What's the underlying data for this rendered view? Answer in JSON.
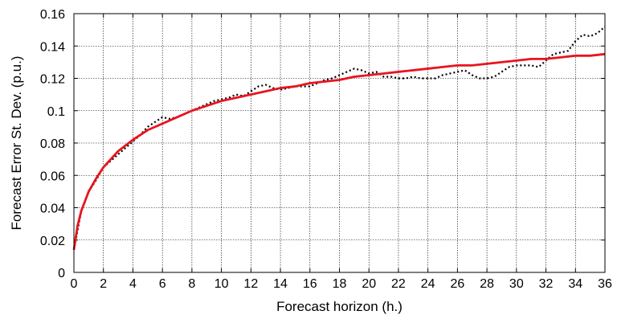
{
  "chart_data": {
    "type": "line",
    "title": "",
    "xlabel": "Forecast horizon (h.)",
    "ylabel": "Forecast Error St. Dev. (p.u.)",
    "xlim": [
      0,
      36
    ],
    "ylim": [
      0,
      0.16
    ],
    "xticks": [
      0,
      2,
      4,
      6,
      8,
      10,
      12,
      14,
      16,
      18,
      20,
      22,
      24,
      26,
      28,
      30,
      32,
      34,
      36
    ],
    "yticks": [
      0,
      0.02,
      0.04,
      0.06,
      0.08,
      0.1,
      0.12,
      0.14,
      0.16
    ],
    "xtick_labels": [
      "0",
      "2",
      "4",
      "6",
      "8",
      "10",
      "12",
      "14",
      "16",
      "18",
      "20",
      "22",
      "24",
      "26",
      "28",
      "30",
      "32",
      "34",
      "36"
    ],
    "ytick_labels": [
      "0",
      "0.02",
      "0.04",
      "0.06",
      "0.08",
      "0.1",
      "0.12",
      "0.14",
      "0.16"
    ],
    "grid": true,
    "series": [
      {
        "style": "dotted",
        "color": "#000000",
        "x": [
          0,
          0.5,
          1,
          1.5,
          2,
          2.5,
          3,
          3.5,
          4,
          4.5,
          5,
          5.5,
          6,
          6.5,
          7,
          7.5,
          8,
          8.5,
          9,
          9.5,
          10,
          10.5,
          11,
          11.5,
          12,
          12.5,
          13,
          13.5,
          14,
          14.5,
          15,
          15.5,
          16,
          16.5,
          17,
          17.5,
          18,
          18.5,
          19,
          19.5,
          20,
          20.5,
          21,
          21.5,
          22,
          22.5,
          23,
          23.5,
          24,
          24.5,
          25,
          25.5,
          26,
          26.5,
          27,
          27.5,
          28,
          28.5,
          29,
          29.5,
          30,
          30.5,
          31,
          31.5,
          32,
          32.5,
          33,
          33.5,
          34,
          34.5,
          35,
          35.5,
          36
        ],
        "y": [
          0.014,
          0.038,
          0.05,
          0.057,
          0.065,
          0.069,
          0.073,
          0.077,
          0.081,
          0.085,
          0.09,
          0.093,
          0.096,
          0.095,
          0.096,
          0.098,
          0.1,
          0.102,
          0.104,
          0.106,
          0.107,
          0.108,
          0.11,
          0.109,
          0.112,
          0.115,
          0.116,
          0.114,
          0.113,
          0.114,
          0.115,
          0.115,
          0.115,
          0.117,
          0.119,
          0.12,
          0.122,
          0.124,
          0.126,
          0.125,
          0.123,
          0.124,
          0.121,
          0.121,
          0.12,
          0.12,
          0.121,
          0.12,
          0.12,
          0.12,
          0.122,
          0.123,
          0.124,
          0.125,
          0.122,
          0.12,
          0.12,
          0.121,
          0.124,
          0.127,
          0.128,
          0.128,
          0.128,
          0.127,
          0.131,
          0.135,
          0.136,
          0.137,
          0.143,
          0.147,
          0.146,
          0.148,
          0.152
        ]
      },
      {
        "style": "solid",
        "color": "#e8141e",
        "x": [
          0,
          0.25,
          0.5,
          1,
          1.5,
          2,
          3,
          4,
          5,
          6,
          7,
          8,
          9,
          10,
          11,
          12,
          13,
          14,
          15,
          16,
          17,
          18,
          19,
          20,
          21,
          22,
          23,
          24,
          25,
          26,
          27,
          28,
          29,
          30,
          31,
          32,
          33,
          34,
          35,
          36
        ],
        "y": [
          0.014,
          0.029,
          0.038,
          0.05,
          0.058,
          0.065,
          0.075,
          0.082,
          0.088,
          0.092,
          0.096,
          0.1,
          0.103,
          0.106,
          0.108,
          0.11,
          0.112,
          0.114,
          0.115,
          0.117,
          0.118,
          0.119,
          0.121,
          0.122,
          0.123,
          0.124,
          0.125,
          0.126,
          0.127,
          0.128,
          0.128,
          0.129,
          0.13,
          0.131,
          0.132,
          0.132,
          0.133,
          0.134,
          0.134,
          0.135
        ]
      }
    ]
  }
}
